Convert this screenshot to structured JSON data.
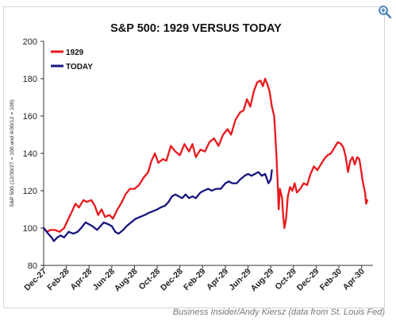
{
  "caption": "Business Insider/Andy Kiersz (data from St. Louis Fed)",
  "zoom_icon": "magnifier-plus-icon",
  "chart_data": {
    "type": "line",
    "title": "S&P 500: 1929 VERSUS TODAY",
    "ylabel": "S&P 500 (12/30/27 = 100 and 4/30/12 = 100)",
    "xlabel": "",
    "ylim": [
      80,
      200
    ],
    "yticks": [
      "80",
      "100",
      "120",
      "140",
      "160",
      "180",
      "200"
    ],
    "xticks": [
      "Dec-27",
      "Feb-28",
      "Apr-28",
      "Jun-28",
      "Aug-28",
      "Oct-28",
      "Dec-28",
      "Feb-29",
      "Apr-29",
      "Jun-29",
      "Aug-29",
      "Oct-29",
      "Dec-29",
      "Feb-30",
      "Apr-30"
    ],
    "x_unit": "months since Dec-27",
    "grid": false,
    "legend": "top-left",
    "series": [
      {
        "name": "1929",
        "color": "#e8191d",
        "points": [
          [
            0,
            100
          ],
          [
            0.3,
            98
          ],
          [
            0.6,
            99
          ],
          [
            1.0,
            99
          ],
          [
            1.4,
            98
          ],
          [
            1.8,
            100
          ],
          [
            2.1,
            104
          ],
          [
            2.5,
            109
          ],
          [
            2.8,
            113
          ],
          [
            3.1,
            111
          ],
          [
            3.5,
            115
          ],
          [
            3.8,
            114
          ],
          [
            4.2,
            115
          ],
          [
            4.5,
            112
          ],
          [
            4.8,
            107
          ],
          [
            5.1,
            110
          ],
          [
            5.4,
            106
          ],
          [
            5.8,
            107
          ],
          [
            6.1,
            105
          ],
          [
            6.5,
            110
          ],
          [
            6.9,
            114
          ],
          [
            7.2,
            118
          ],
          [
            7.6,
            121
          ],
          [
            8.0,
            121
          ],
          [
            8.4,
            123
          ],
          [
            8.8,
            127
          ],
          [
            9.2,
            130
          ],
          [
            9.5,
            136
          ],
          [
            9.8,
            140
          ],
          [
            10.1,
            135
          ],
          [
            10.5,
            137
          ],
          [
            10.8,
            136
          ],
          [
            11.2,
            144
          ],
          [
            11.6,
            141
          ],
          [
            12.0,
            139
          ],
          [
            12.4,
            145
          ],
          [
            12.8,
            141
          ],
          [
            13.1,
            145
          ],
          [
            13.4,
            138
          ],
          [
            13.8,
            142
          ],
          [
            14.2,
            141
          ],
          [
            14.6,
            146
          ],
          [
            15.0,
            148
          ],
          [
            15.4,
            144
          ],
          [
            15.8,
            150
          ],
          [
            16.2,
            153
          ],
          [
            16.5,
            150
          ],
          [
            16.9,
            158
          ],
          [
            17.3,
            162
          ],
          [
            17.6,
            163
          ],
          [
            17.9,
            169
          ],
          [
            18.2,
            165
          ],
          [
            18.5,
            173
          ],
          [
            18.8,
            178
          ],
          [
            19.1,
            179
          ],
          [
            19.3,
            176
          ],
          [
            19.5,
            180
          ],
          [
            19.7,
            177
          ],
          [
            19.9,
            173
          ],
          [
            20.1,
            165
          ],
          [
            20.3,
            160
          ],
          [
            20.4,
            150
          ],
          [
            20.5,
            138
          ],
          [
            20.6,
            125
          ],
          [
            20.7,
            110
          ],
          [
            20.8,
            121
          ],
          [
            21.0,
            116
          ],
          [
            21.1,
            106
          ],
          [
            21.2,
            100
          ],
          [
            21.35,
            105
          ],
          [
            21.5,
            117
          ],
          [
            21.7,
            122
          ],
          [
            21.9,
            120
          ],
          [
            22.1,
            124
          ],
          [
            22.3,
            119
          ],
          [
            22.6,
            121
          ],
          [
            22.9,
            124
          ],
          [
            23.2,
            123
          ],
          [
            23.5,
            129
          ],
          [
            23.8,
            133
          ],
          [
            24.1,
            131
          ],
          [
            24.4,
            134
          ],
          [
            24.7,
            137
          ],
          [
            25.0,
            139
          ],
          [
            25.3,
            140
          ],
          [
            25.6,
            143
          ],
          [
            25.9,
            146
          ],
          [
            26.2,
            145
          ],
          [
            26.4,
            143
          ],
          [
            26.6,
            138
          ],
          [
            26.8,
            130
          ],
          [
            27.0,
            136
          ],
          [
            27.2,
            138
          ],
          [
            27.4,
            134
          ],
          [
            27.6,
            138
          ],
          [
            27.8,
            137
          ],
          [
            27.95,
            131
          ],
          [
            28.1,
            125
          ],
          [
            28.3,
            119
          ],
          [
            28.4,
            113
          ],
          [
            28.5,
            115
          ]
        ]
      },
      {
        "name": "TODAY",
        "color": "#18167f",
        "points": [
          [
            0,
            100
          ],
          [
            0.4,
            97
          ],
          [
            0.7,
            95
          ],
          [
            0.9,
            93
          ],
          [
            1.2,
            95
          ],
          [
            1.5,
            96
          ],
          [
            1.8,
            95
          ],
          [
            2.2,
            98
          ],
          [
            2.6,
            97
          ],
          [
            3.0,
            98
          ],
          [
            3.3,
            100
          ],
          [
            3.7,
            103
          ],
          [
            4.0,
            102
          ],
          [
            4.3,
            101
          ],
          [
            4.7,
            99
          ],
          [
            5.0,
            101
          ],
          [
            5.3,
            103
          ],
          [
            5.7,
            102
          ],
          [
            6.0,
            101
          ],
          [
            6.3,
            98
          ],
          [
            6.6,
            97
          ],
          [
            7.0,
            99
          ],
          [
            7.3,
            101
          ],
          [
            7.7,
            103
          ],
          [
            8.1,
            105
          ],
          [
            8.5,
            106
          ],
          [
            8.9,
            107
          ],
          [
            9.2,
            108
          ],
          [
            9.6,
            109
          ],
          [
            10.0,
            110
          ],
          [
            10.3,
            111
          ],
          [
            10.7,
            112
          ],
          [
            11.0,
            114
          ],
          [
            11.3,
            117
          ],
          [
            11.6,
            118
          ],
          [
            11.9,
            117
          ],
          [
            12.2,
            116
          ],
          [
            12.5,
            118
          ],
          [
            12.8,
            116
          ],
          [
            13.1,
            117
          ],
          [
            13.4,
            116
          ],
          [
            13.8,
            119
          ],
          [
            14.1,
            120
          ],
          [
            14.5,
            121
          ],
          [
            14.8,
            120
          ],
          [
            15.2,
            121
          ],
          [
            15.6,
            121
          ],
          [
            16.0,
            124
          ],
          [
            16.3,
            125
          ],
          [
            16.6,
            124
          ],
          [
            17.0,
            124
          ],
          [
            17.3,
            126
          ],
          [
            17.7,
            128
          ],
          [
            18.0,
            129
          ],
          [
            18.3,
            128
          ],
          [
            18.6,
            129
          ],
          [
            18.9,
            130
          ],
          [
            19.2,
            128
          ],
          [
            19.5,
            129
          ],
          [
            19.8,
            124
          ],
          [
            20.0,
            126
          ],
          [
            20.1,
            131
          ]
        ]
      }
    ]
  }
}
